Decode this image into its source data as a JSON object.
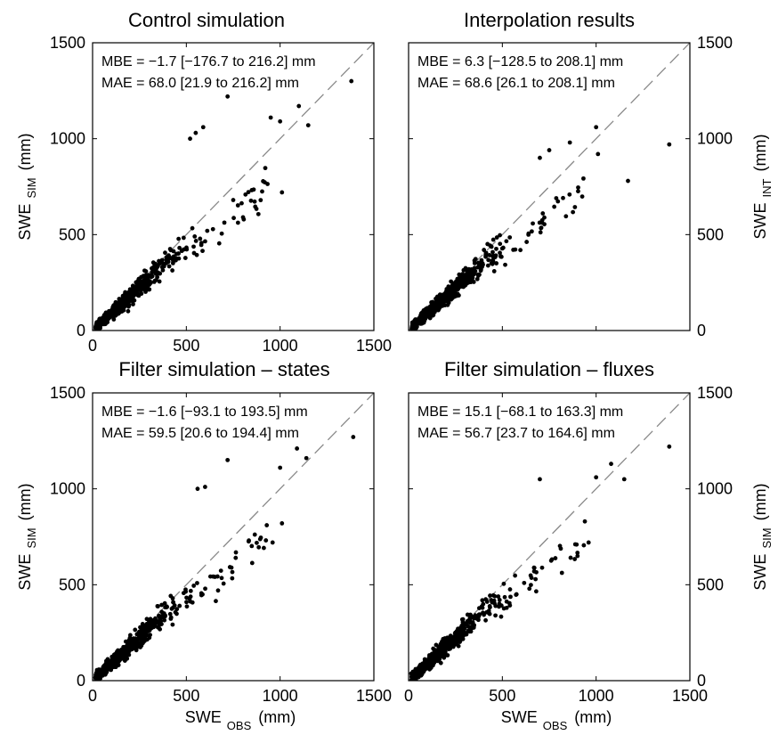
{
  "chart_data": [
    {
      "type": "scatter",
      "title": "Control simulation",
      "ylabel_main": "SWE",
      "ylabel_sub": "SIM",
      "ylabel_unit": "(mm)",
      "xlabel_main": "",
      "xlabel_sub": "",
      "xlabel_unit": "",
      "xlim": [
        0,
        1500
      ],
      "ylim": [
        0,
        1500
      ],
      "xticks": [
        "0",
        "500",
        "1000",
        "1500"
      ],
      "yticks": [
        "0",
        "500",
        "1000",
        "1500"
      ],
      "y_axis_side": "left",
      "reference_line": "1:1 dashed",
      "annotations": [
        "MBE = −1.7 [−176.7 to 216.2] mm",
        "MAE = 68.0 [21.9 to 216.2] mm"
      ],
      "outliers": [
        [
          520,
          1000
        ],
        [
          550,
          1030
        ],
        [
          590,
          1060
        ],
        [
          720,
          1220
        ],
        [
          950,
          1110
        ],
        [
          1000,
          1090
        ],
        [
          1100,
          1170
        ],
        [
          1150,
          1070
        ],
        [
          1380,
          1300
        ],
        [
          1010,
          720
        ]
      ],
      "cloud": [
        [
          20,
          40,
          0.35
        ],
        [
          60,
          80,
          0.3
        ],
        [
          110,
          140,
          0.28
        ],
        [
          170,
          190,
          0.26
        ],
        [
          240,
          240,
          0.24
        ],
        [
          320,
          300,
          0.22
        ],
        [
          420,
          380,
          0.2
        ]
      ]
    },
    {
      "type": "scatter",
      "title": "Interpolation results",
      "ylabel_main": "SWE",
      "ylabel_sub": "INT",
      "ylabel_unit": "(mm)",
      "xlabel_main": "",
      "xlabel_sub": "",
      "xlabel_unit": "",
      "xlim": [
        0,
        1500
      ],
      "ylim": [
        0,
        1500
      ],
      "xticks": [],
      "yticks": [
        "0",
        "500",
        "1000",
        "1500"
      ],
      "y_axis_side": "right",
      "reference_line": "1:1 dashed",
      "annotations": [
        "MBE = 6.3 [−128.5 to 208.1] mm",
        "MAE = 68.6 [26.1 to 208.1] mm"
      ],
      "outliers": [
        [
          1390,
          970
        ],
        [
          1170,
          780
        ],
        [
          1000,
          1060
        ],
        [
          860,
          980
        ],
        [
          1010,
          920
        ],
        [
          750,
          940
        ],
        [
          700,
          900
        ]
      ],
      "cloud": [
        [
          20,
          40,
          0.35
        ],
        [
          70,
          90,
          0.3
        ],
        [
          120,
          150,
          0.28
        ],
        [
          180,
          200,
          0.26
        ],
        [
          250,
          260,
          0.24
        ],
        [
          330,
          330,
          0.22
        ],
        [
          430,
          420,
          0.2
        ]
      ]
    },
    {
      "type": "scatter",
      "title": "Filter simulation – states",
      "ylabel_main": "SWE",
      "ylabel_sub": "SIM",
      "ylabel_unit": "(mm)",
      "xlabel_main": "SWE",
      "xlabel_sub": "OBS",
      "xlabel_unit": "(mm)",
      "xlim": [
        0,
        1500
      ],
      "ylim": [
        0,
        1500
      ],
      "xticks": [
        "0",
        "500",
        "1000",
        "1500"
      ],
      "yticks": [
        "0",
        "500",
        "1000",
        "1500"
      ],
      "y_axis_side": "left",
      "reference_line": "1:1 dashed",
      "annotations": [
        "MBE = −1.6 [−93.1 to 193.5] mm",
        "MAE = 59.5 [20.6 to 194.4] mm"
      ],
      "outliers": [
        [
          560,
          1000
        ],
        [
          600,
          1010
        ],
        [
          720,
          1150
        ],
        [
          1000,
          1110
        ],
        [
          1090,
          1210
        ],
        [
          1140,
          1160
        ],
        [
          1390,
          1270
        ],
        [
          1010,
          820
        ],
        [
          960,
          720
        ]
      ],
      "cloud": [
        [
          20,
          40,
          0.35
        ],
        [
          60,
          80,
          0.3
        ],
        [
          110,
          140,
          0.28
        ],
        [
          170,
          200,
          0.26
        ],
        [
          240,
          260,
          0.24
        ],
        [
          320,
          330,
          0.22
        ],
        [
          430,
          430,
          0.2
        ]
      ]
    },
    {
      "type": "scatter",
      "title": "Filter simulation – fluxes",
      "ylabel_main": "SWE",
      "ylabel_sub": "SIM",
      "ylabel_unit": "(mm)",
      "xlabel_main": "SWE",
      "xlabel_sub": "OBS",
      "xlabel_unit": "(mm)",
      "xlim": [
        0,
        1500
      ],
      "ylim": [
        0,
        1500
      ],
      "xticks": [
        "0",
        "500",
        "1000",
        "1500"
      ],
      "yticks": [
        "0",
        "500",
        "1000",
        "1500"
      ],
      "y_axis_side": "right",
      "reference_line": "1:1 dashed",
      "annotations": [
        "MBE = 15.1 [−68.1 to 163.3] mm",
        "MAE = 56.7 [23.7 to 164.6] mm"
      ],
      "outliers": [
        [
          700,
          1050
        ],
        [
          1000,
          1060
        ],
        [
          1080,
          1130
        ],
        [
          1150,
          1050
        ],
        [
          1390,
          1220
        ],
        [
          940,
          830
        ],
        [
          960,
          720
        ]
      ],
      "cloud": [
        [
          20,
          40,
          0.35
        ],
        [
          60,
          80,
          0.3
        ],
        [
          110,
          140,
          0.28
        ],
        [
          170,
          200,
          0.26
        ],
        [
          240,
          260,
          0.24
        ],
        [
          320,
          330,
          0.22
        ],
        [
          430,
          440,
          0.2
        ]
      ]
    }
  ]
}
